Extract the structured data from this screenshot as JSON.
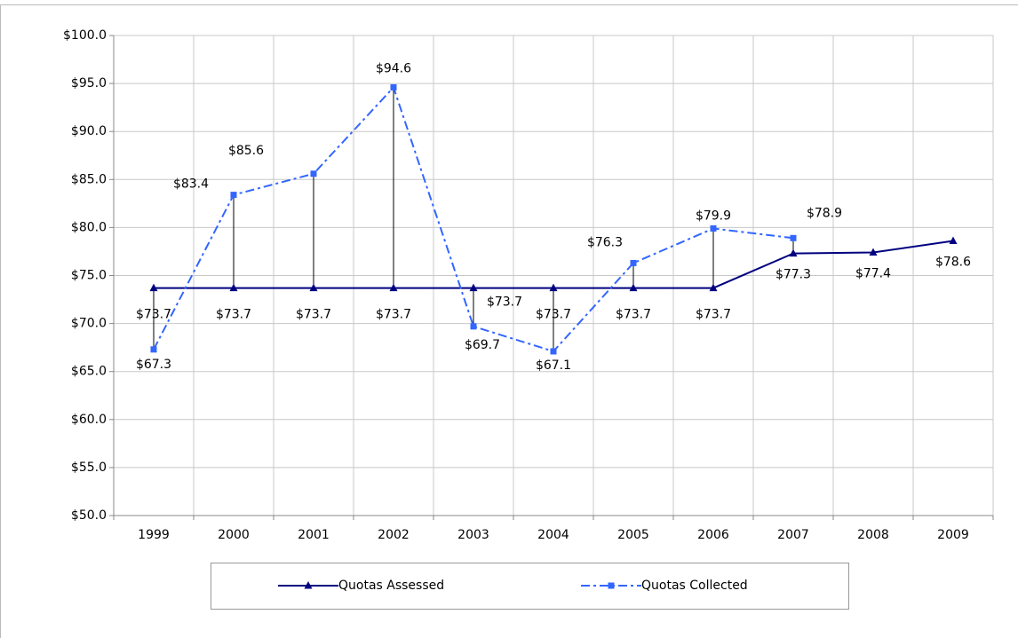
{
  "chart_data": {
    "type": "line",
    "categories": [
      "1999",
      "2000",
      "2001",
      "2002",
      "2003",
      "2004",
      "2005",
      "2006",
      "2007",
      "2008",
      "2009"
    ],
    "series": [
      {
        "name": "Quotas Assessed",
        "color": "#000080",
        "marker": "triangle",
        "dash": "solid",
        "values": [
          73.7,
          73.7,
          73.7,
          73.7,
          73.7,
          73.7,
          73.7,
          73.7,
          77.3,
          77.4,
          78.6
        ],
        "value_labels": [
          "$73.7",
          "$73.7",
          "$73.7",
          "$73.7",
          "$73.7",
          "$73.7",
          "$73.7",
          "$73.7",
          "$77.3",
          "$77.4",
          "$78.6"
        ]
      },
      {
        "name": "Quotas Collected",
        "color": "#3366FF",
        "marker": "square",
        "dash": "dashdot",
        "values": [
          67.3,
          83.4,
          85.6,
          94.6,
          69.7,
          67.1,
          76.3,
          79.9,
          78.9,
          null,
          null
        ],
        "value_labels": [
          "$67.3",
          "$83.4",
          "$85.6",
          "$94.6",
          "$69.7",
          "$67.1",
          "$76.3",
          "$79.9",
          "$78.9",
          null,
          null
        ]
      }
    ],
    "ylim": [
      50,
      100
    ],
    "yticks": [
      {
        "value": 50,
        "label": "$50.0"
      },
      {
        "value": 55,
        "label": "$55.0"
      },
      {
        "value": 60,
        "label": "$60.0"
      },
      {
        "value": 65,
        "label": "$65.0"
      },
      {
        "value": 70,
        "label": "$70.0"
      },
      {
        "value": 75,
        "label": "$75.0"
      },
      {
        "value": 80,
        "label": "$80.0"
      },
      {
        "value": 85,
        "label": "$85.0"
      },
      {
        "value": 90,
        "label": "$90.0"
      },
      {
        "value": 95,
        "label": "$95.0"
      },
      {
        "value": 100,
        "label": "$100.0"
      }
    ],
    "grid": true,
    "drop_lines": true,
    "legend": "bottom"
  }
}
